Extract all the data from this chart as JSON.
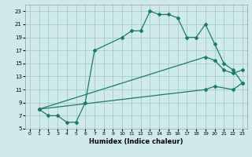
{
  "xlabel": "Humidex (Indice chaleur)",
  "background_color": "#ceeaea",
  "grid_color": "#aacfcf",
  "line_color": "#1a7a6e",
  "xlim": [
    -0.5,
    23.5
  ],
  "ylim": [
    5,
    24
  ],
  "xticks": [
    0,
    1,
    2,
    3,
    4,
    5,
    6,
    7,
    8,
    9,
    10,
    11,
    12,
    13,
    14,
    15,
    16,
    17,
    18,
    19,
    20,
    21,
    22,
    23
  ],
  "yticks": [
    5,
    7,
    9,
    11,
    13,
    15,
    17,
    19,
    21,
    23
  ],
  "curve1_x": [
    1,
    2,
    3,
    4,
    5,
    6,
    7,
    10,
    11,
    12,
    13,
    14,
    15,
    16,
    17,
    18,
    19,
    20,
    21,
    22,
    23
  ],
  "curve1_y": [
    8,
    7,
    7,
    6,
    6,
    9,
    17,
    19,
    20,
    20,
    23,
    22.5,
    22.5,
    22,
    19,
    19,
    21,
    18,
    15,
    14,
    12
  ],
  "curve2_x": [
    1,
    19,
    20,
    21,
    22,
    23
  ],
  "curve2_y": [
    8,
    16,
    15.5,
    14,
    13.5,
    14
  ],
  "curve3_x": [
    1,
    19,
    20,
    22,
    23
  ],
  "curve3_y": [
    8,
    11,
    11.5,
    11,
    12
  ]
}
